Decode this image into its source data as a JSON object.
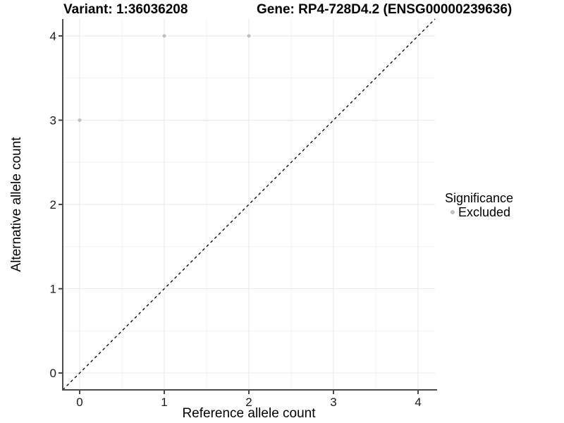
{
  "chart_data": {
    "type": "scatter",
    "title_left": "Variant: 1:36036208",
    "title_right": "Gene: RP4-728D4.2 (ENSG00000239636)",
    "xlabel": "Reference allele count",
    "ylabel": "Alternative allele count",
    "xlim": [
      -0.2,
      4.2
    ],
    "ylim": [
      -0.2,
      4.2
    ],
    "x_ticks": [
      0,
      1,
      2,
      3,
      4
    ],
    "y_ticks": [
      0,
      1,
      2,
      3,
      4
    ],
    "x_minor_ticks": [
      0.5,
      1.5,
      2.5,
      3.5
    ],
    "y_minor_ticks": [
      0.5,
      1.5,
      2.5,
      3.5
    ],
    "grid": true,
    "legend_position": "right",
    "series": [
      {
        "name": "Excluded",
        "points": [
          [
            0,
            3
          ],
          [
            1,
            4
          ],
          [
            2,
            4
          ]
        ]
      }
    ],
    "identity_line": {
      "style": "dashed",
      "slope": 1,
      "intercept": 0
    },
    "legend": {
      "title": "Significance",
      "items": [
        {
          "label": "Excluded"
        }
      ]
    }
  },
  "colors": {
    "point": "#c0c0c0",
    "grid_major": "#e9e9e9",
    "grid_minor": "#f3f3f3",
    "axis_line": "#4d4d4d",
    "tick_mark": "#333333",
    "tick_label": "#1a1a1a",
    "identity_line": "#000000",
    "text": "#000000"
  }
}
